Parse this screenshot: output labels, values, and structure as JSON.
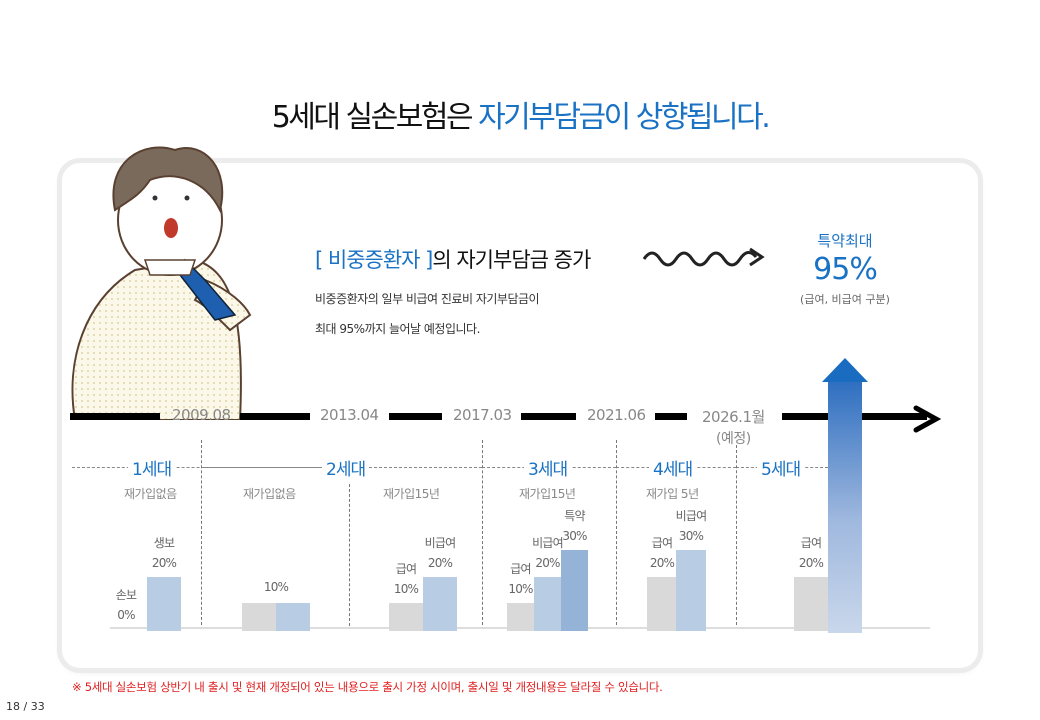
{
  "title": {
    "prefix": "5세대 실손보험은 ",
    "highlight": "자기부담금이 상향됩니다."
  },
  "headline": {
    "bracket_open": "[ ",
    "subject": "비중증환자",
    "bracket_close": " ]",
    "rest": "의 자기부담금 증가"
  },
  "description": [
    "비중증환자의 일부 비급여 진료비 자기부담금이",
    "최대 95%까지 늘어날 예정입니다."
  ],
  "maximum": {
    "label": "특약최대",
    "value": "95%",
    "note": "(급여, 비급여 구분)"
  },
  "timeline": {
    "dates": [
      "2009.08",
      "2013.04",
      "2017.03",
      "2021.06",
      "2026.1월"
    ],
    "date_note": "(예정)"
  },
  "generations": [
    {
      "name": "1세대",
      "requirement": "재가입없음"
    },
    {
      "name": "2세대",
      "requirement": "재가입없음"
    },
    {
      "name": "2세대-b",
      "requirement": "재가입15년"
    },
    {
      "name": "3세대",
      "requirement": "재가입15년"
    },
    {
      "name": "4세대",
      "requirement": "재가입 5년"
    },
    {
      "name": "5세대",
      "requirement": ""
    }
  ],
  "chart_data": {
    "type": "bar",
    "ylabel": "",
    "ylim": [
      0,
      95
    ],
    "groups": [
      {
        "generation": "1세대",
        "bars": [
          {
            "label": "손보",
            "value": 0,
            "color": "#d9d9d9",
            "text": "손보\n0%"
          },
          {
            "label": "생보",
            "value": 20,
            "color": "#b8cce4",
            "text": "생보\n20%"
          }
        ]
      },
      {
        "generation": "2세대 (2009.08)",
        "bars": [
          {
            "label": "",
            "value": 10,
            "color": "#d9d9d9",
            "text": ""
          },
          {
            "label": "",
            "value": 10,
            "color": "#b8cce4",
            "text": ""
          }
        ],
        "shared_label": "10%"
      },
      {
        "generation": "2세대 (2013.04)",
        "bars": [
          {
            "label": "급여",
            "value": 10,
            "color": "#d9d9d9",
            "text": "급여\n10%"
          },
          {
            "label": "비급여",
            "value": 20,
            "color": "#b8cce4",
            "text": "비급여\n20%"
          }
        ]
      },
      {
        "generation": "3세대",
        "bars": [
          {
            "label": "급여",
            "value": 10,
            "color": "#d9d9d9",
            "text": "급여\n10%"
          },
          {
            "label": "비급여",
            "value": 20,
            "color": "#b8cce4",
            "text": "비급여\n20%"
          },
          {
            "label": "특약",
            "value": 30,
            "color": "#95b3d7",
            "text": "특약\n30%"
          }
        ]
      },
      {
        "generation": "4세대",
        "bars": [
          {
            "label": "급여",
            "value": 20,
            "color": "#d9d9d9",
            "text": "급여\n20%"
          },
          {
            "label": "비급여",
            "value": 30,
            "color": "#b8cce4",
            "text": "비급여\n30%"
          }
        ]
      },
      {
        "generation": "5세대",
        "bars": [
          {
            "label": "급여",
            "value": 20,
            "color": "#d9d9d9",
            "text": "급여\n20%"
          },
          {
            "label": "특약최대",
            "value": 95,
            "color": "gradient",
            "text": ""
          }
        ]
      }
    ]
  },
  "colors": {
    "accent": "#1a72c4",
    "note": "#e02020"
  },
  "footnote": "※ 5세대 실손보험 상반기 내 출시 및 현재 개정되어 있는 내용으로 출시 가정 시이며, 출시일 및 개정내용은 달라질 수 있습니다.",
  "pager": "18 / 33"
}
